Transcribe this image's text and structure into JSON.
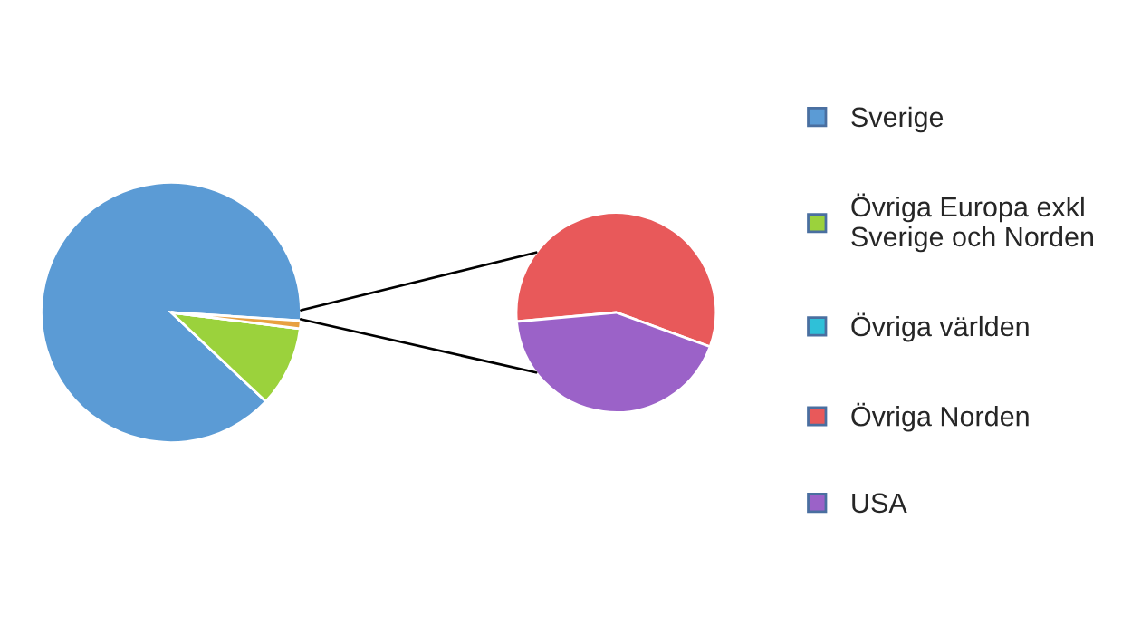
{
  "chart_data": [
    {
      "type": "pie",
      "categories": [
        "Sverige",
        "Övriga Europa exkl\nSverige och Norden",
        "Övriga världen",
        null
      ],
      "values": [
        89,
        10,
        0,
        1
      ],
      "colors": [
        "#5b9bd5",
        "#9bd23c",
        "#2fc0d8",
        "#e8a040"
      ],
      "legend": "right"
    },
    {
      "type": "pie",
      "categories": [
        "Övriga Norden",
        "USA"
      ],
      "values": [
        57,
        43
      ],
      "colors": [
        "#e8595a",
        "#9b62c8"
      ],
      "legend": "right"
    }
  ]
}
